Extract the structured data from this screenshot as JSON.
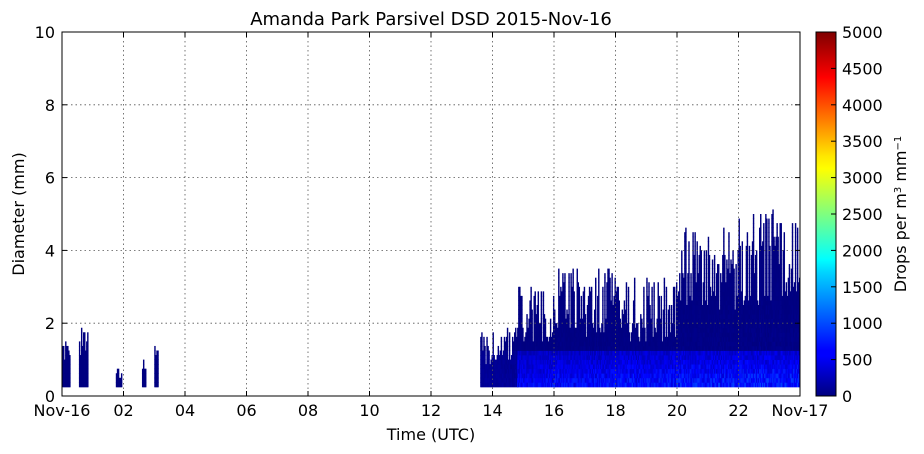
{
  "chart_data": {
    "type": "heatmap",
    "title": "Amanda Park Parsivel DSD 2015-Nov-16",
    "xlabel": "Time (UTC)",
    "ylabel": "Diameter (mm)",
    "colorbar_label": "Drops per m",
    "colorbar_label_sup": "3",
    "colorbar_label_tail": " mm",
    "colorbar_label_sup2": "−1",
    "xlim": [
      0,
      24
    ],
    "ylim": [
      0,
      10
    ],
    "clim": [
      0,
      5000
    ],
    "grid": true,
    "colormap": "jet",
    "x_ticks": [
      {
        "value": 0,
        "label": "Nov-16"
      },
      {
        "value": 2,
        "label": "02"
      },
      {
        "value": 4,
        "label": "04"
      },
      {
        "value": 6,
        "label": "06"
      },
      {
        "value": 8,
        "label": "08"
      },
      {
        "value": 10,
        "label": "10"
      },
      {
        "value": 12,
        "label": "12"
      },
      {
        "value": 14,
        "label": "14"
      },
      {
        "value": 16,
        "label": "16"
      },
      {
        "value": 18,
        "label": "18"
      },
      {
        "value": 20,
        "label": "20"
      },
      {
        "value": 22,
        "label": "22"
      },
      {
        "value": 24,
        "label": "Nov-17"
      }
    ],
    "y_ticks": [
      0,
      2,
      4,
      6,
      8,
      10
    ],
    "colorbar_ticks": [
      0,
      500,
      1000,
      1500,
      2000,
      2500,
      3000,
      3500,
      4000,
      4500,
      5000
    ],
    "colors": {
      "low": "#00007f",
      "mid": "#0000ff",
      "high": "#7f0000"
    },
    "data_notes_visible": false,
    "rain_periods": [
      {
        "start": 0.0,
        "end": 0.25,
        "max_diameter": 1.5,
        "intensity": 60
      },
      {
        "start": 0.55,
        "end": 0.85,
        "max_diameter": 1.8,
        "intensity": 80
      },
      {
        "start": 1.75,
        "end": 1.95,
        "max_diameter": 0.75,
        "intensity": 40
      },
      {
        "start": 2.6,
        "end": 2.7,
        "max_diameter": 0.9,
        "intensity": 40
      },
      {
        "start": 3.0,
        "end": 3.1,
        "max_diameter": 1.3,
        "intensity": 40
      },
      {
        "start": 13.6,
        "end": 14.8,
        "max_diameter": 1.8,
        "intensity": 150
      },
      {
        "start": 14.8,
        "end": 16.0,
        "max_diameter": 3.0,
        "intensity": 700
      },
      {
        "start": 16.0,
        "end": 18.0,
        "max_diameter": 3.5,
        "intensity": 750
      },
      {
        "start": 18.0,
        "end": 20.0,
        "max_diameter": 3.2,
        "intensity": 800
      },
      {
        "start": 20.0,
        "end": 22.0,
        "max_diameter": 4.6,
        "intensity": 850
      },
      {
        "start": 22.0,
        "end": 24.0,
        "max_diameter": 5.1,
        "intensity": 900
      }
    ]
  }
}
